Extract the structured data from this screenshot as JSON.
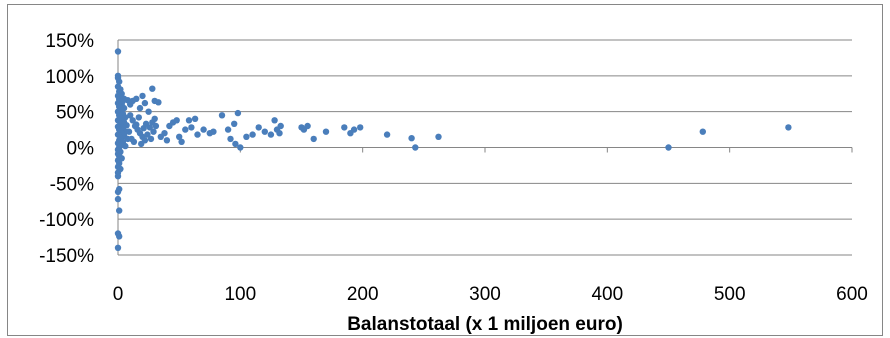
{
  "chart_data": {
    "type": "scatter",
    "title": "",
    "xlabel": "Balanstotaal (x 1 miljoen euro)",
    "ylabel": "",
    "xlim": [
      0,
      600
    ],
    "ylim": [
      -1.5,
      1.5
    ],
    "x_ticks": [
      0,
      100,
      200,
      300,
      400,
      500,
      600
    ],
    "x_tick_labels": [
      "0",
      "100",
      "200",
      "300",
      "400",
      "500",
      "600"
    ],
    "y_ticks": [
      1.5,
      1.0,
      0.5,
      0.0,
      -0.5,
      -1.0,
      -1.5
    ],
    "y_tick_labels": [
      "150%",
      "100%",
      "50%",
      "0%",
      "-50%",
      "-100%",
      "-150%"
    ],
    "grid": "horizontal",
    "legend": "none",
    "marker_color": "#4a7ebb",
    "series": [
      {
        "points": [
          [
            0,
            1.34
          ],
          [
            0,
            1.0
          ],
          [
            0,
            0.97
          ],
          [
            1,
            0.92
          ],
          [
            0,
            0.85
          ],
          [
            2,
            0.81
          ],
          [
            1,
            0.78
          ],
          [
            3,
            0.75
          ],
          [
            0,
            0.72
          ],
          [
            2,
            0.7
          ],
          [
            1,
            0.67
          ],
          [
            4,
            0.65
          ],
          [
            0,
            0.62
          ],
          [
            3,
            0.6
          ],
          [
            1,
            0.57
          ],
          [
            5,
            0.55
          ],
          [
            2,
            0.52
          ],
          [
            0,
            0.5
          ],
          [
            4,
            0.47
          ],
          [
            1,
            0.45
          ],
          [
            6,
            0.42
          ],
          [
            3,
            0.4
          ],
          [
            0,
            0.38
          ],
          [
            5,
            0.35
          ],
          [
            2,
            0.33
          ],
          [
            7,
            0.31
          ],
          [
            0,
            0.29
          ],
          [
            4,
            0.27
          ],
          [
            1,
            0.25
          ],
          [
            6,
            0.22
          ],
          [
            3,
            0.2
          ],
          [
            0,
            0.18
          ],
          [
            5,
            0.16
          ],
          [
            2,
            0.14
          ],
          [
            8,
            0.12
          ],
          [
            1,
            0.1
          ],
          [
            4,
            0.08
          ],
          [
            0,
            0.06
          ],
          [
            3,
            0.04
          ],
          [
            6,
            0.02
          ],
          [
            1,
            0.0
          ],
          [
            0,
            -0.03
          ],
          [
            2,
            -0.06
          ],
          [
            0,
            -0.09
          ],
          [
            1,
            -0.12
          ],
          [
            3,
            -0.15
          ],
          [
            0,
            -0.18
          ],
          [
            1,
            -0.22
          ],
          [
            0,
            -0.27
          ],
          [
            2,
            -0.3
          ],
          [
            0,
            -0.35
          ],
          [
            0,
            -0.4
          ],
          [
            1,
            -0.58
          ],
          [
            0,
            -0.62
          ],
          [
            0,
            -0.72
          ],
          [
            1,
            -0.88
          ],
          [
            0,
            -1.2
          ],
          [
            1,
            -1.24
          ],
          [
            0,
            -1.4
          ],
          [
            5,
            0.68
          ],
          [
            8,
            0.66
          ],
          [
            10,
            0.6
          ],
          [
            12,
            0.65
          ],
          [
            15,
            0.68
          ],
          [
            18,
            0.55
          ],
          [
            20,
            0.72
          ],
          [
            22,
            0.62
          ],
          [
            25,
            0.5
          ],
          [
            28,
            0.82
          ],
          [
            30,
            0.65
          ],
          [
            33,
            0.63
          ],
          [
            10,
            0.45
          ],
          [
            12,
            0.38
          ],
          [
            14,
            0.3
          ],
          [
            16,
            0.25
          ],
          [
            18,
            0.2
          ],
          [
            20,
            0.15
          ],
          [
            22,
            0.1
          ],
          [
            24,
            0.18
          ],
          [
            26,
            0.28
          ],
          [
            28,
            0.35
          ],
          [
            30,
            0.4
          ],
          [
            9,
            0.22
          ],
          [
            11,
            0.12
          ],
          [
            13,
            0.08
          ],
          [
            15,
            0.32
          ],
          [
            17,
            0.42
          ],
          [
            19,
            0.05
          ],
          [
            21,
            0.27
          ],
          [
            23,
            0.33
          ],
          [
            27,
            0.12
          ],
          [
            29,
            0.22
          ],
          [
            31,
            0.3
          ],
          [
            35,
            0.15
          ],
          [
            38,
            0.2
          ],
          [
            40,
            0.1
          ],
          [
            42,
            0.3
          ],
          [
            45,
            0.35
          ],
          [
            48,
            0.38
          ],
          [
            50,
            0.15
          ],
          [
            52,
            0.08
          ],
          [
            55,
            0.25
          ],
          [
            58,
            0.38
          ],
          [
            60,
            0.28
          ],
          [
            63,
            0.4
          ],
          [
            65,
            0.18
          ],
          [
            70,
            0.25
          ],
          [
            75,
            0.2
          ],
          [
            78,
            0.22
          ],
          [
            85,
            0.45
          ],
          [
            90,
            0.25
          ],
          [
            92,
            0.12
          ],
          [
            95,
            0.33
          ],
          [
            96,
            0.05
          ],
          [
            98,
            0.48
          ],
          [
            100,
            0.0
          ],
          [
            105,
            0.15
          ],
          [
            110,
            0.18
          ],
          [
            115,
            0.28
          ],
          [
            120,
            0.22
          ],
          [
            125,
            0.18
          ],
          [
            128,
            0.38
          ],
          [
            130,
            0.25
          ],
          [
            132,
            0.2
          ],
          [
            133,
            0.3
          ],
          [
            150,
            0.28
          ],
          [
            152,
            0.25
          ],
          [
            155,
            0.3
          ],
          [
            160,
            0.12
          ],
          [
            170,
            0.22
          ],
          [
            185,
            0.28
          ],
          [
            190,
            0.2
          ],
          [
            193,
            0.25
          ],
          [
            198,
            0.28
          ],
          [
            220,
            0.18
          ],
          [
            240,
            0.13
          ],
          [
            243,
            0.0
          ],
          [
            262,
            0.15
          ],
          [
            450,
            0.0
          ],
          [
            478,
            0.22
          ],
          [
            548,
            0.28
          ]
        ]
      }
    ]
  }
}
